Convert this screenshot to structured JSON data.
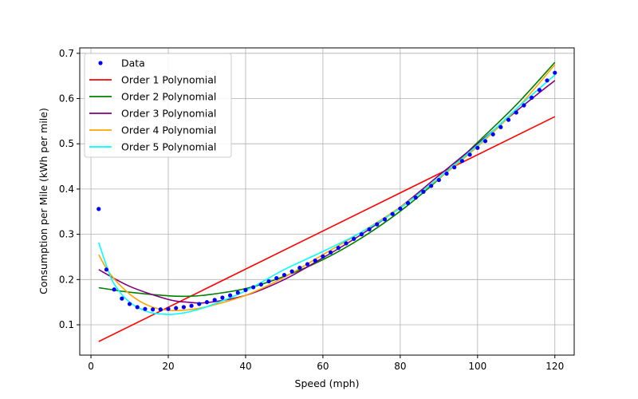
{
  "chart_data": {
    "type": "line",
    "title": "",
    "xlabel": "Speed (mph)",
    "ylabel": "Consumption per Mile (kWh per mile)",
    "xlim": [
      -2.9,
      125
    ],
    "ylim": [
      0.033,
      0.712
    ],
    "xticks": [
      0,
      20,
      40,
      60,
      80,
      100,
      120
    ],
    "yticks": [
      0.1,
      0.2,
      0.3,
      0.4,
      0.5,
      0.6,
      0.7
    ],
    "grid": true,
    "legend_position": "upper-left",
    "scatter": {
      "name": "Data",
      "color": "#0000ff",
      "x": [
        2,
        4,
        6,
        8,
        10,
        12,
        14,
        16,
        18,
        20,
        22,
        24,
        26,
        28,
        30,
        32,
        34,
        36,
        38,
        40,
        42,
        44,
        46,
        48,
        50,
        52,
        54,
        56,
        58,
        60,
        62,
        64,
        66,
        68,
        70,
        72,
        74,
        76,
        78,
        80,
        82,
        84,
        86,
        88,
        90,
        92,
        94,
        96,
        98,
        100,
        102,
        104,
        106,
        108,
        110,
        112,
        114,
        116,
        118,
        120
      ],
      "y": [
        0.356,
        0.222,
        0.178,
        0.158,
        0.146,
        0.139,
        0.135,
        0.134,
        0.134,
        0.135,
        0.137,
        0.139,
        0.142,
        0.146,
        0.15,
        0.155,
        0.16,
        0.165,
        0.171,
        0.177,
        0.183,
        0.189,
        0.196,
        0.203,
        0.21,
        0.218,
        0.226,
        0.234,
        0.242,
        0.251,
        0.26,
        0.27,
        0.28,
        0.29,
        0.3,
        0.311,
        0.322,
        0.333,
        0.345,
        0.357,
        0.369,
        0.381,
        0.394,
        0.407,
        0.42,
        0.434,
        0.448,
        0.462,
        0.476,
        0.491,
        0.506,
        0.521,
        0.537,
        0.553,
        0.569,
        0.585,
        0.602,
        0.619,
        0.64,
        0.657
      ]
    },
    "series": [
      {
        "name": "Order 1 Polynomial",
        "color": "#ff0000",
        "x": [
          2,
          120
        ],
        "y": [
          0.063,
          0.56
        ]
      },
      {
        "name": "Order 2 Polynomial",
        "color": "#008000",
        "x": [
          2,
          10,
          20,
          25,
          30,
          40,
          50,
          60,
          70,
          80,
          90,
          100,
          110,
          120
        ],
        "y": [
          0.182,
          0.172,
          0.164,
          0.163,
          0.166,
          0.18,
          0.207,
          0.244,
          0.292,
          0.351,
          0.422,
          0.503,
          0.586,
          0.68
        ]
      },
      {
        "name": "Order 3 Polynomial",
        "color": "#800080",
        "x": [
          2,
          10,
          20,
          25,
          30,
          40,
          50,
          60,
          70,
          80,
          90,
          100,
          110,
          120
        ],
        "y": [
          0.222,
          0.185,
          0.156,
          0.15,
          0.149,
          0.165,
          0.2,
          0.248,
          0.3,
          0.36,
          0.43,
          0.5,
          0.572,
          0.64
        ]
      },
      {
        "name": "Order 4 Polynomial",
        "color": "#ffa500",
        "x": [
          2,
          5,
          10,
          15,
          20,
          25,
          30,
          40,
          50,
          60,
          70,
          80,
          90,
          100,
          110,
          120
        ],
        "y": [
          0.255,
          0.212,
          0.168,
          0.142,
          0.132,
          0.133,
          0.14,
          0.165,
          0.205,
          0.255,
          0.305,
          0.36,
          0.423,
          0.494,
          0.576,
          0.675
        ]
      },
      {
        "name": "Order 5 Polynomial",
        "color": "#00ffff",
        "x": [
          2,
          4,
          6,
          10,
          15,
          20,
          22,
          25,
          30,
          40,
          50,
          60,
          70,
          80,
          90,
          100,
          110,
          115,
          120
        ],
        "y": [
          0.282,
          0.231,
          0.19,
          0.15,
          0.128,
          0.123,
          0.124,
          0.128,
          0.14,
          0.175,
          0.222,
          0.262,
          0.305,
          0.358,
          0.425,
          0.497,
          0.577,
          0.615,
          0.652
        ]
      }
    ]
  }
}
